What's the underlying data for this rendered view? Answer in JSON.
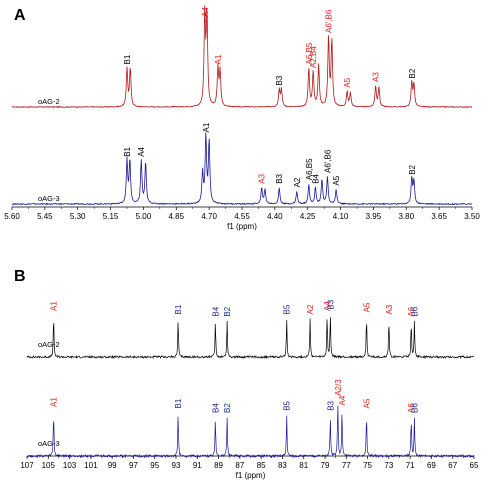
{
  "colors": {
    "red": "#b2181b",
    "blue": "#1a1a9a",
    "black": "#000000",
    "label_red": "#e0201c",
    "label_blue": "#1a2a8a"
  },
  "chart_data": [
    {
      "panel": "A",
      "type": "line",
      "xlabel": "f1 (ppm)",
      "xlim": [
        5.6,
        3.5
      ],
      "x_reversed": true,
      "x_ticks": [
        "5.60",
        "5.45",
        "5.30",
        "5.15",
        "5.00",
        "4.85",
        "4.70",
        "4.55",
        "4.40",
        "4.25",
        "4.10",
        "3.95",
        "3.80",
        "3.65",
        "3.50"
      ],
      "series": [
        {
          "name": "oAG-2",
          "color": "red",
          "peaks": [
            {
              "x": 5.075,
              "h": 0.55,
              "label": "B1",
              "label_color": "black"
            },
            {
              "x": 5.06,
              "h": 0.55
            },
            {
              "x": 4.72,
              "h": 1.3,
              "label": "A4",
              "label_color": "red"
            },
            {
              "x": 4.71,
              "h": 1.3
            },
            {
              "x": 4.66,
              "h": 0.55,
              "label": "A1",
              "label_color": "red"
            },
            {
              "x": 4.65,
              "h": 0.5
            },
            {
              "x": 4.38,
              "h": 0.25,
              "label": "B3",
              "label_color": "black"
            },
            {
              "x": 4.37,
              "h": 0.25
            },
            {
              "x": 4.245,
              "h": 0.55,
              "label": "A6,B5",
              "label_color": "red"
            },
            {
              "x": 4.225,
              "h": 0.5,
              "label": "A2,B4",
              "label_color": "red"
            },
            {
              "x": 4.2,
              "h": 0.6
            },
            {
              "x": 4.155,
              "h": 1.0,
              "label": "A6',B6",
              "label_color": "red"
            },
            {
              "x": 4.14,
              "h": 0.95
            },
            {
              "x": 4.07,
              "h": 0.22,
              "label": "A5",
              "label_color": "red"
            },
            {
              "x": 4.055,
              "h": 0.2
            },
            {
              "x": 3.94,
              "h": 0.3,
              "label": "A3",
              "label_color": "red"
            },
            {
              "x": 3.925,
              "h": 0.28
            },
            {
              "x": 3.775,
              "h": 0.35,
              "label": "B2",
              "label_color": "black"
            },
            {
              "x": 3.765,
              "h": 0.32
            }
          ]
        },
        {
          "name": "oAG-3",
          "color": "blue",
          "peaks": [
            {
              "x": 5.075,
              "h": 0.48,
              "label": "B1",
              "label_color": "black"
            },
            {
              "x": 5.062,
              "h": 0.48
            },
            {
              "x": 5.01,
              "h": 0.48,
              "label": "A4",
              "label_color": "black"
            },
            {
              "x": 4.99,
              "h": 0.46
            },
            {
              "x": 4.73,
              "h": 0.35
            },
            {
              "x": 4.715,
              "h": 0.75,
              "label": "A1",
              "label_color": "black"
            },
            {
              "x": 4.7,
              "h": 0.7
            },
            {
              "x": 4.46,
              "h": 0.18,
              "label": "A3",
              "label_color": "red"
            },
            {
              "x": 4.445,
              "h": 0.16
            },
            {
              "x": 4.38,
              "h": 0.18,
              "label": "B3",
              "label_color": "black"
            },
            {
              "x": 4.3,
              "h": 0.14,
              "label": "A2",
              "label_color": "black"
            },
            {
              "x": 4.245,
              "h": 0.22,
              "label": "A6,B5",
              "label_color": "black"
            },
            {
              "x": 4.215,
              "h": 0.18,
              "label": "B4",
              "label_color": "black"
            },
            {
              "x": 4.185,
              "h": 0.28
            },
            {
              "x": 4.16,
              "h": 0.3,
              "label": "A6',B6",
              "label_color": "black"
            },
            {
              "x": 4.12,
              "h": 0.16,
              "label": "A5",
              "label_color": "black"
            },
            {
              "x": 3.775,
              "h": 0.28,
              "label": "B2",
              "label_color": "black"
            },
            {
              "x": 3.765,
              "h": 0.26
            }
          ]
        }
      ]
    },
    {
      "panel": "B",
      "type": "line",
      "xlabel": "f1 (ppm)",
      "xlim": [
        107,
        65
      ],
      "x_reversed": true,
      "x_ticks": [
        "107",
        "105",
        "103",
        "101",
        "99",
        "97",
        "95",
        "93",
        "91",
        "89",
        "87",
        "85",
        "83",
        "81",
        "79",
        "77",
        "75",
        "73",
        "71",
        "69",
        "67",
        "65"
      ],
      "series": [
        {
          "name": "oAG-2",
          "color": "black",
          "peaks": [
            {
              "x": 104.5,
              "h": 0.6,
              "label": "A1",
              "label_color": "red"
            },
            {
              "x": 92.8,
              "h": 0.55,
              "label": "B1",
              "label_color": "blue"
            },
            {
              "x": 89.3,
              "h": 0.52,
              "label": "B4",
              "label_color": "blue"
            },
            {
              "x": 88.2,
              "h": 0.52,
              "label": "B2",
              "label_color": "blue"
            },
            {
              "x": 82.6,
              "h": 0.55,
              "label": "B5",
              "label_color": "blue"
            },
            {
              "x": 80.4,
              "h": 0.55,
              "label": "A2",
              "label_color": "red"
            },
            {
              "x": 78.8,
              "h": 0.6,
              "label": "A4",
              "label_color": "red"
            },
            {
              "x": 78.5,
              "h": 0.62,
              "label": "B3",
              "label_color": "blue"
            },
            {
              "x": 75.1,
              "h": 0.58,
              "label": "A5",
              "label_color": "red"
            },
            {
              "x": 73.0,
              "h": 0.55,
              "label": "A3",
              "label_color": "red"
            },
            {
              "x": 70.9,
              "h": 0.52,
              "label": "A6",
              "label_color": "red"
            },
            {
              "x": 70.6,
              "h": 0.52,
              "label": "B6",
              "label_color": "blue"
            }
          ]
        },
        {
          "name": "oAG-3",
          "color": "blue",
          "peaks": [
            {
              "x": 104.5,
              "h": 0.6,
              "label": "A1",
              "label_color": "red"
            },
            {
              "x": 92.8,
              "h": 0.58,
              "label": "B1",
              "label_color": "blue"
            },
            {
              "x": 89.3,
              "h": 0.52,
              "label": "B4",
              "label_color": "blue"
            },
            {
              "x": 88.2,
              "h": 0.52,
              "label": "B2",
              "label_color": "blue"
            },
            {
              "x": 82.6,
              "h": 0.55,
              "label": "B5",
              "label_color": "blue"
            },
            {
              "x": 78.5,
              "h": 0.55,
              "label": "B3",
              "label_color": "blue"
            },
            {
              "x": 77.8,
              "h": 0.75,
              "label": "A2/3",
              "label_color": "red"
            },
            {
              "x": 77.4,
              "h": 0.62,
              "label": "A4",
              "label_color": "red"
            },
            {
              "x": 75.1,
              "h": 0.58,
              "label": "A5",
              "label_color": "red"
            },
            {
              "x": 70.9,
              "h": 0.52,
              "label": "A6",
              "label_color": "red"
            },
            {
              "x": 70.6,
              "h": 0.52,
              "label": "B6",
              "label_color": "blue"
            }
          ]
        }
      ]
    }
  ]
}
